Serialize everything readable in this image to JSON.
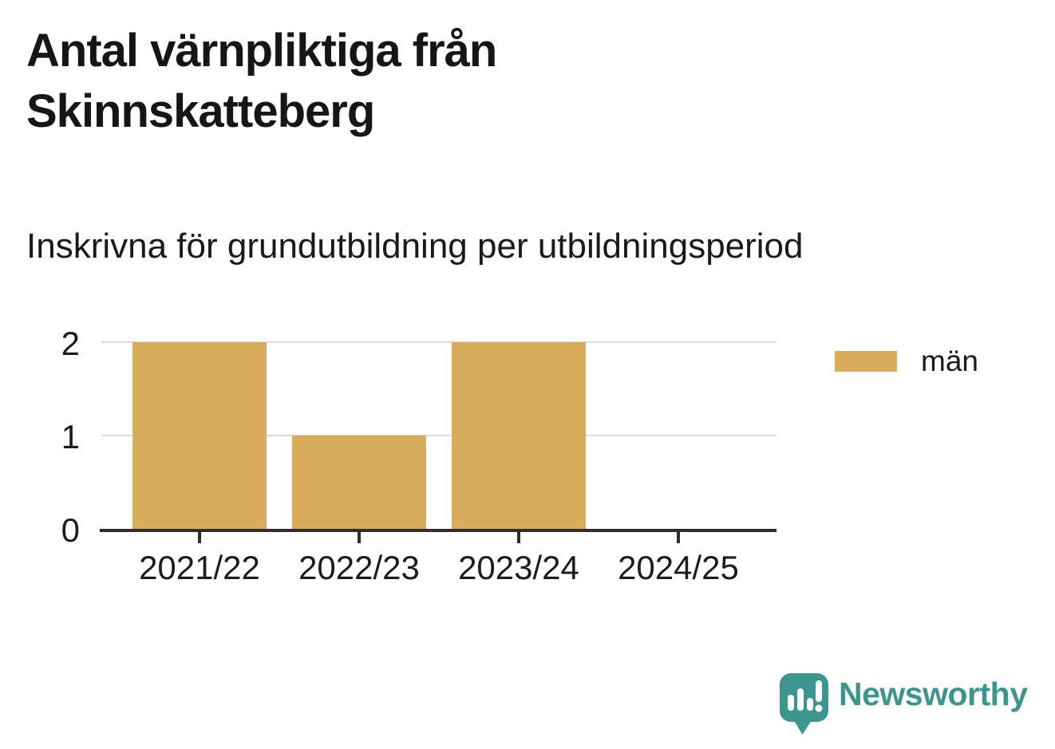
{
  "title": "Antal värnpliktiga från Skinnskatteberg",
  "subtitle": "Inskrivna för grundutbildning per utbildningsperiod",
  "legend": {
    "label": "män",
    "swatch_color": "#d9ac5c"
  },
  "branding": {
    "name": "Newsworthy",
    "color": "#3b978d",
    "icon": "newsworthy-speech-bubble-bar-chart-icon"
  },
  "colors": {
    "bar": "#d9ac5c",
    "axis": "#2e2e2e",
    "gridline": "#dbdbdb",
    "text": "#1a1a1a",
    "brand_teal": "#3b978d"
  },
  "chart_data": {
    "type": "bar",
    "categories": [
      "2021/22",
      "2022/23",
      "2023/24",
      "2024/25"
    ],
    "series": [
      {
        "name": "män",
        "values": [
          2,
          1,
          2,
          0
        ]
      }
    ],
    "title": "Antal värnpliktiga från Skinnskatteberg",
    "subtitle": "Inskrivna för grundutbildning per utbildningsperiod",
    "xlabel": "",
    "ylabel": "",
    "ylim": [
      0,
      2
    ],
    "yticks": [
      0,
      1,
      2
    ],
    "grid": "horizontal",
    "legend_position": "right",
    "bar_color": "#d9ac5c"
  }
}
